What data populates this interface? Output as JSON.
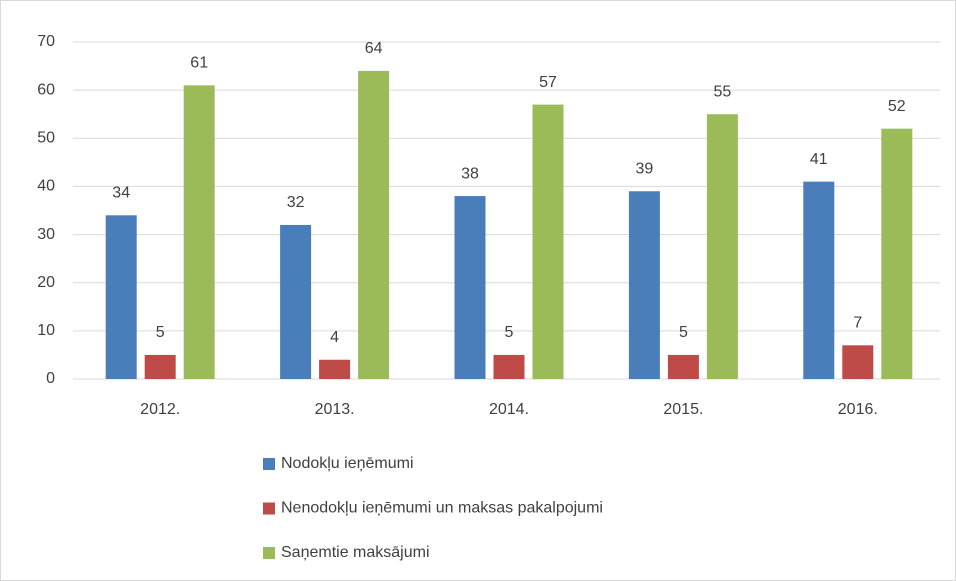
{
  "chart_data": {
    "type": "bar",
    "categories": [
      "2012.",
      "2013.",
      "2014.",
      "2015.",
      "2016."
    ],
    "series": [
      {
        "name": "Nodokļu ieņēmumi",
        "color": "#4a7ebb",
        "values": [
          34,
          32,
          38,
          39,
          41
        ]
      },
      {
        "name": "Nenodokļu ieņēmumi un maksas pakalpojumi",
        "color": "#be4b48",
        "values": [
          5,
          4,
          5,
          5,
          7
        ]
      },
      {
        "name": "Saņemtie maksājumi",
        "color": "#9bbb59",
        "values": [
          61,
          64,
          57,
          55,
          52
        ]
      }
    ],
    "ylim": [
      0,
      70
    ],
    "yticks": [
      0,
      10,
      20,
      30,
      40,
      50,
      60,
      70
    ],
    "grid": true,
    "legend": "bottom"
  }
}
